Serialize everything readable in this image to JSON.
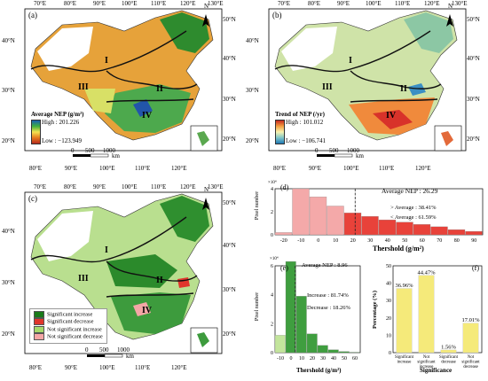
{
  "panels": {
    "a": {
      "letter": "(a)",
      "legend_title": "Average NEP (g/m²)",
      "high": "High : 201.226",
      "low": "Low : −123.949"
    },
    "b": {
      "letter": "(b)",
      "legend_title": "Trend of  NEP (/yr)",
      "high": "High : 101.012",
      "low": "Low : −106.741"
    },
    "c": {
      "letter": "(c)",
      "legend_items": [
        {
          "label": "Significant increase",
          "color": "#1a7a1a"
        },
        {
          "label": "Significant decrease",
          "color": "#e0362c"
        },
        {
          "label": "Not significant increase",
          "color": "#a6d96a"
        },
        {
          "label": "Not significant decrease",
          "color": "#f4a6a6"
        }
      ]
    }
  },
  "map_labels": {
    "lon": [
      "70°E",
      "80°E",
      "90°E",
      "100°E",
      "110°E",
      "120°E",
      "130°E"
    ],
    "lat": [
      "50°N",
      "40°N",
      "30°N",
      "20°N"
    ],
    "regions": [
      "I",
      "II",
      "III",
      "IV"
    ],
    "north": "N",
    "scale": [
      "0",
      "500",
      "1000",
      "km"
    ]
  },
  "charts": {
    "d": {
      "letter": "(d)",
      "annotation": "Average NEP : 26.29",
      "above": "> Average : 38.41%",
      "below": "< Average : 61.59%",
      "ylabel": "Pixel number",
      "y_multiplier": "×10⁴",
      "xlabel": "Thershold (g/m²)"
    },
    "e": {
      "letter": "(e)",
      "annotation": "Average NEP : 8.96",
      "increase": "Increase : 81.74%",
      "decrease": "Decrease : 18.26%",
      "ylabel": "Pixel number",
      "y_multiplier": "×10⁴",
      "xlabel": "Thershold (g/m²)"
    },
    "f": {
      "letter": "(f)",
      "ylabel": "Percentage (%)",
      "xlabel": "Significance"
    }
  },
  "chart_data": [
    {
      "type": "bar",
      "panel": "d",
      "x": [
        -20,
        -10,
        0,
        10,
        20,
        30,
        40,
        50,
        60,
        70,
        80,
        90
      ],
      "values": [
        0.2,
        4.0,
        3.3,
        2.5,
        1.9,
        1.6,
        1.3,
        1.1,
        0.9,
        0.7,
        0.45,
        0.3
      ],
      "average": 26.29,
      "ylim": [
        0,
        4
      ],
      "yticks": [
        0,
        2,
        4
      ],
      "xticks": [
        -20,
        -10,
        0,
        10,
        20,
        30,
        40,
        50,
        60,
        70,
        80,
        90
      ],
      "colors": {
        "below": "#f4a9a9",
        "above": "#e8423a"
      }
    },
    {
      "type": "bar",
      "panel": "e",
      "x": [
        -10,
        0,
        10,
        20,
        30,
        40,
        50,
        60
      ],
      "values": [
        1.2,
        6.3,
        3.9,
        1.3,
        0.5,
        0.2,
        0.08,
        0.03
      ],
      "average": 8.96,
      "ylim": [
        0,
        6
      ],
      "yticks": [
        0,
        2,
        4,
        6
      ],
      "xticks": [
        -10,
        0,
        10,
        20,
        30,
        40,
        50,
        60
      ],
      "colors": {
        "below": "#c3e59c",
        "above": "#3f9e3f"
      }
    },
    {
      "type": "bar",
      "panel": "f",
      "categories": [
        "Significant increase",
        "Not significant increase",
        "Significant decrease",
        "Not significant decrease"
      ],
      "values": [
        36.96,
        44.47,
        1.56,
        17.01
      ],
      "value_labels": [
        "36.96%",
        "44.47%",
        "1.56%",
        "17.01%"
      ],
      "ylim": [
        0,
        50
      ],
      "yticks": [
        0,
        10,
        20,
        30,
        40,
        50
      ],
      "color": "#f5ea7a"
    }
  ]
}
